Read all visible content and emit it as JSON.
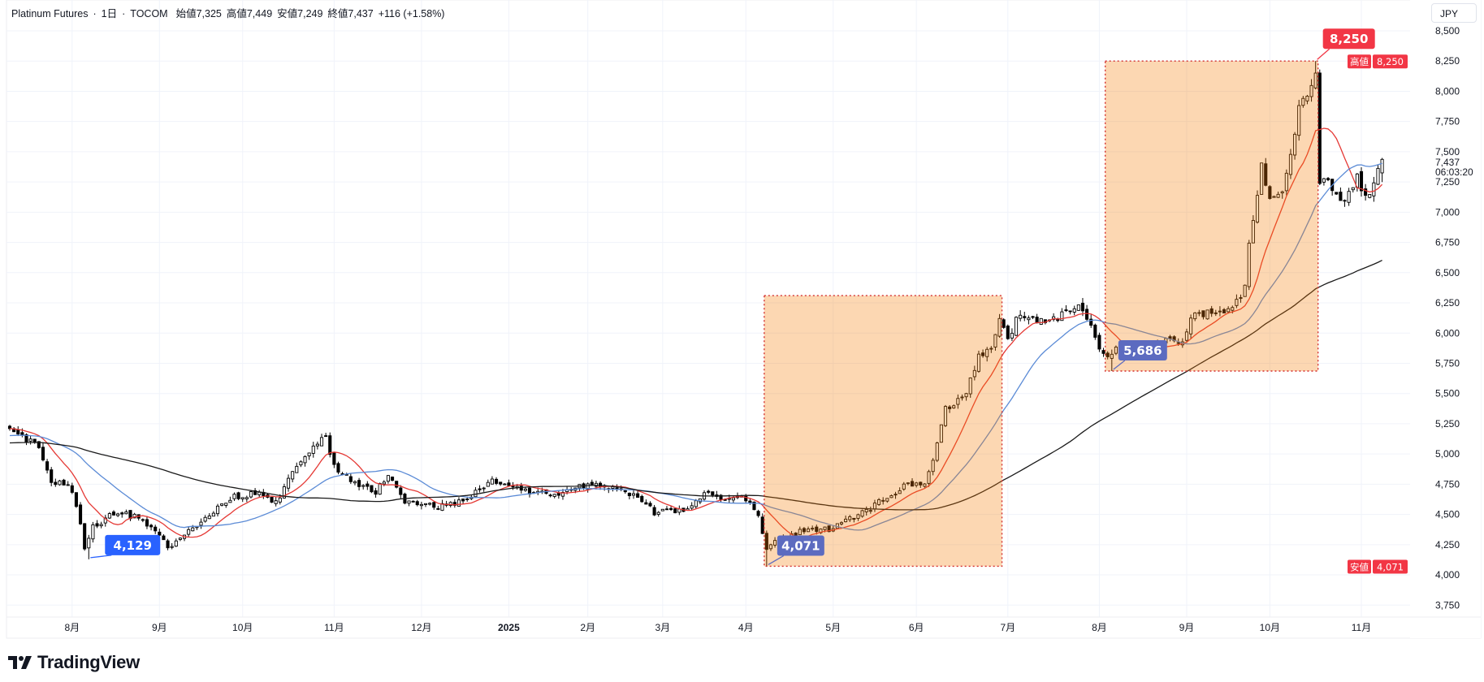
{
  "header": {
    "symbol": "Platinum Futures",
    "sep1": "·",
    "interval": "1日",
    "sep2": "·",
    "exchange": "TOCOM",
    "open": "始値7,325",
    "high": "高値7,449",
    "low": "安値7,249",
    "close": "終値7,437",
    "change": "+116 (+1.58%)"
  },
  "currency": "JPY",
  "last_price": "7,437",
  "countdown": "06:03:20",
  "high_badge": {
    "label": "高値",
    "value": "8,250"
  },
  "low_badge": {
    "label": "安値",
    "value": "4,071"
  },
  "callouts": [
    "4,129",
    "4,071",
    "5,686",
    "8,250"
  ],
  "brand": "TradingView",
  "colors": {
    "ma_fast": "#e53935",
    "ma_mid": "#5b8bd6",
    "ma_slow": "#1a1a1a",
    "highlight": "#f57c00",
    "highlight_border": "#d32f2f",
    "callout_blue": "#2962ff",
    "callout_indigo": "#5c6bc0",
    "callout_red": "#f23645"
  },
  "chart_data": {
    "type": "candlestick",
    "title": "Platinum Futures · 1日 · TOCOM",
    "ylim": [
      3650,
      8600
    ],
    "y_ticks": [
      "8,500",
      "8,250",
      "8,000",
      "7,750",
      "7,500",
      "7,250",
      "7,000",
      "6,750",
      "6,500",
      "6,250",
      "6,000",
      "5,750",
      "5,500",
      "5,250",
      "5,000",
      "4,750",
      "4,500",
      "4,250",
      "4,000",
      "3,750"
    ],
    "x_ticks": [
      {
        "label": "8月",
        "bar": 15
      },
      {
        "label": "9月",
        "bar": 36
      },
      {
        "label": "10月",
        "bar": 56
      },
      {
        "label": "11月",
        "bar": 78
      },
      {
        "label": "12月",
        "bar": 99
      },
      {
        "label": "2025",
        "bar": 120
      },
      {
        "label": "2月",
        "bar": 139
      },
      {
        "label": "3月",
        "bar": 157
      },
      {
        "label": "4月",
        "bar": 177
      },
      {
        "label": "5月",
        "bar": 198
      },
      {
        "label": "6月",
        "bar": 218
      },
      {
        "label": "7月",
        "bar": 240
      },
      {
        "label": "8月",
        "bar": 262
      },
      {
        "label": "9月",
        "bar": 283
      },
      {
        "label": "10月",
        "bar": 303
      },
      {
        "label": "11月",
        "bar": 325
      }
    ],
    "moving_averages": [
      10,
      25,
      75
    ],
    "close_anchors": [
      [
        0,
        5180
      ],
      [
        7,
        5070
      ],
      [
        10,
        4790
      ],
      [
        15,
        4710
      ],
      [
        18,
        4240
      ],
      [
        20,
        4400
      ],
      [
        26,
        4530
      ],
      [
        32,
        4450
      ],
      [
        38,
        4240
      ],
      [
        42,
        4320
      ],
      [
        47,
        4480
      ],
      [
        53,
        4640
      ],
      [
        59,
        4680
      ],
      [
        64,
        4600
      ],
      [
        68,
        4830
      ],
      [
        73,
        5070
      ],
      [
        76,
        5130
      ],
      [
        78,
        4910
      ],
      [
        83,
        4750
      ],
      [
        88,
        4690
      ],
      [
        91,
        4830
      ],
      [
        95,
        4600
      ],
      [
        102,
        4560
      ],
      [
        109,
        4600
      ],
      [
        116,
        4780
      ],
      [
        120,
        4720
      ],
      [
        125,
        4680
      ],
      [
        132,
        4680
      ],
      [
        139,
        4750
      ],
      [
        145,
        4720
      ],
      [
        150,
        4660
      ],
      [
        155,
        4520
      ],
      [
        161,
        4520
      ],
      [
        167,
        4660
      ],
      [
        173,
        4640
      ],
      [
        177,
        4640
      ],
      [
        180,
        4480
      ],
      [
        182,
        4200
      ],
      [
        186,
        4320
      ],
      [
        191,
        4360
      ],
      [
        198,
        4380
      ],
      [
        203,
        4480
      ],
      [
        209,
        4600
      ],
      [
        216,
        4750
      ],
      [
        220,
        4750
      ],
      [
        223,
        5070
      ],
      [
        225,
        5380
      ],
      [
        230,
        5500
      ],
      [
        233,
        5810
      ],
      [
        236,
        5890
      ],
      [
        238,
        6130
      ],
      [
        240,
        5970
      ],
      [
        243,
        6160
      ],
      [
        248,
        6090
      ],
      [
        252,
        6130
      ],
      [
        257,
        6200
      ],
      [
        260,
        6090
      ],
      [
        262,
        5850
      ],
      [
        264,
        5810
      ],
      [
        268,
        5890
      ],
      [
        274,
        5850
      ],
      [
        278,
        5940
      ],
      [
        282,
        5920
      ],
      [
        284,
        6160
      ],
      [
        289,
        6180
      ],
      [
        293,
        6200
      ],
      [
        297,
        6360
      ],
      [
        298,
        6710
      ],
      [
        300,
        7180
      ],
      [
        301,
        7420
      ],
      [
        303,
        7100
      ],
      [
        306,
        7180
      ],
      [
        308,
        7500
      ],
      [
        310,
        7850
      ],
      [
        312,
        7970
      ],
      [
        314,
        8140
      ],
      [
        315,
        7260
      ],
      [
        318,
        7220
      ],
      [
        320,
        7070
      ],
      [
        324,
        7300
      ],
      [
        325,
        7140
      ],
      [
        327,
        7180
      ],
      [
        330,
        7437
      ]
    ],
    "extremes": [
      {
        "type": "low",
        "bar": 19,
        "value": 4129
      },
      {
        "type": "low",
        "bar": 182,
        "value": 4071
      },
      {
        "type": "low",
        "bar": 265,
        "value": 5686
      },
      {
        "type": "high",
        "bar": 314,
        "value": 8250
      }
    ],
    "highlight_ranges": [
      {
        "from_bar": 182,
        "to_bar": 238,
        "top": 6310,
        "bottom": 4071
      },
      {
        "from_bar": 264,
        "to_bar": 314,
        "top": 8250,
        "bottom": 5686
      }
    ]
  }
}
